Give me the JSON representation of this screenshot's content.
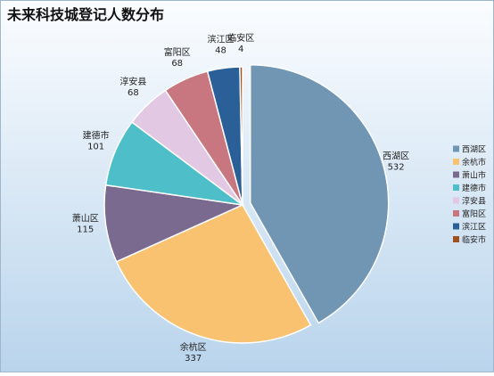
{
  "chart_data": {
    "type": "pie",
    "title": "未来科技城登记人数分布",
    "categories": [
      "西湖区",
      "余杭市",
      "萧山市",
      "建德市",
      "淳安县",
      "富阳区",
      "滨江区",
      "临安市"
    ],
    "data_label_names": [
      "西湖区",
      "余杭区",
      "萧山区",
      "建德市",
      "淳安县",
      "富阳区",
      "滨江区",
      "临安区"
    ],
    "values": [
      532,
      337,
      115,
      101,
      68,
      68,
      48,
      4
    ],
    "colors": [
      "#7096b4",
      "#f9c271",
      "#7a6a90",
      "#4ebec8",
      "#e2c8e2",
      "#c8767f",
      "#2a6097",
      "#a0521c"
    ],
    "legend": "right"
  }
}
